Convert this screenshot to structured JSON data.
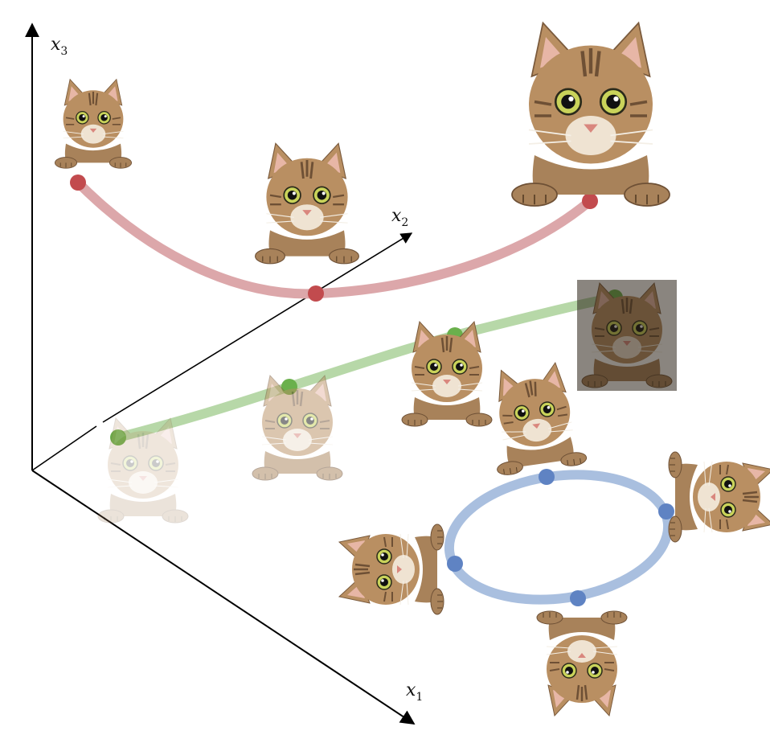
{
  "axes": {
    "x1": {
      "name": "x",
      "sub": "1"
    },
    "x2": {
      "name": "x",
      "sub": "2"
    },
    "x3": {
      "name": "x",
      "sub": "3"
    }
  },
  "colors": {
    "axis": "#000000",
    "red_curve": "#dca7aa",
    "red_point": "#c24b4e",
    "green_curve": "#b7d8a8",
    "green_point": "#6ab04c",
    "blue_curve": "#a9bfdf",
    "blue_point": "#5f83c3",
    "cat_fur": "#b98f62",
    "cat_fur_dark": "#7a5a3c",
    "cat_eye": "#c9d35a"
  },
  "curves": {
    "red": {
      "meaning": "scale",
      "points": 3,
      "cat_sizes": [
        "small",
        "medium",
        "large"
      ]
    },
    "green": {
      "meaning": "brightness",
      "points": 4,
      "cat_tones": [
        0.2,
        0.55,
        1.0,
        0.45
      ]
    },
    "blue": {
      "meaning": "rotation",
      "points": 4,
      "cat_rotations_deg": [
        0,
        90,
        180,
        270
      ]
    }
  }
}
